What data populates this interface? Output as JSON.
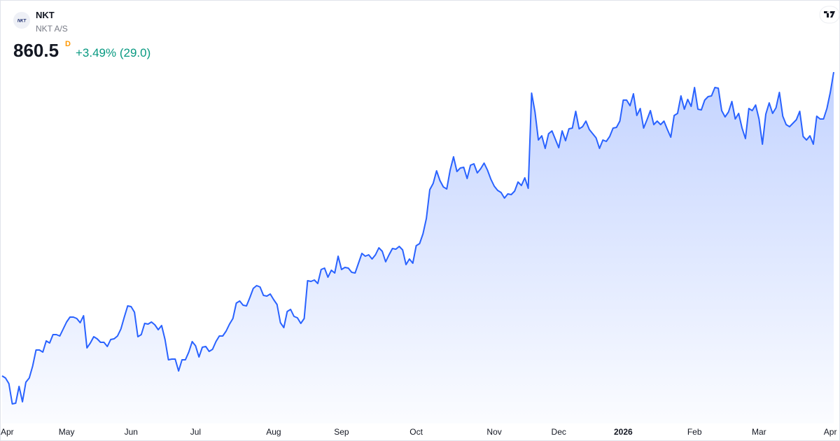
{
  "header": {
    "symbol": "NKT",
    "name": "NKT A/S",
    "price": "860.5",
    "interval": "D",
    "change": "+3.49% (29.0)"
  },
  "chart_data": {
    "type": "area",
    "color": "#2962ff",
    "values": [
      426.5,
      423.5,
      415.5,
      386.5,
      387.5,
      411.5,
      389.5,
      417.5,
      423.5,
      440.5,
      463.5,
      463.5,
      460.5,
      476.5,
      473.5,
      485.5,
      485.5,
      483.5,
      493.5,
      503.5,
      510.5,
      510.5,
      508.5,
      502.5,
      512.5,
      466.5,
      473.5,
      482.5,
      479.5,
      474.5,
      474.5,
      468.5,
      478.5,
      479.5,
      483.5,
      493.5,
      510.5,
      526.5,
      525.5,
      517.5,
      482.5,
      485.5,
      501.5,
      500.5,
      503.5,
      499.5,
      492.5,
      498.5,
      478.5,
      449.5,
      450.5,
      450.5,
      433.5,
      449.5,
      449.5,
      460.5,
      475.5,
      469.5,
      453.5,
      467.5,
      468.5,
      461.5,
      464.5,
      475.5,
      483.5,
      483.5,
      490.5,
      500.5,
      508.5,
      530.5,
      533.5,
      527.5,
      526.5,
      538.5,
      551.5,
      555.5,
      553.5,
      541.5,
      540.5,
      543.5,
      535.5,
      528.5,
      502.5,
      495.5,
      518.5,
      521.5,
      511.5,
      509.5,
      501.5,
      508.5,
      562.5,
      561.5,
      563.5,
      558.5,
      578.5,
      580.5,
      567.5,
      577.5,
      573.5,
      597.5,
      578.5,
      581.5,
      580.5,
      574.5,
      573.5,
      587.5,
      601.5,
      597.5,
      599.5,
      593.5,
      599.5,
      609.5,
      604.5,
      589.5,
      599.5,
      608.5,
      607.5,
      611.5,
      606.5,
      585.5,
      593.5,
      587.5,
      612.5,
      615.5,
      629.5,
      651.5,
      692.5,
      701.5,
      719.5,
      705.5,
      696.5,
      693.5,
      720.5,
      739.5,
      718.5,
      723.5,
      724.5,
      708.5,
      727.5,
      729.5,
      716.5,
      722.5,
      730.5,
      720.5,
      707.5,
      697.5,
      691.5,
      688.5,
      680.5,
      686.5,
      685.5,
      690.5,
      703.5,
      698.5,
      709.5,
      694.5,
      830.5,
      803.5,
      763.5,
      769.5,
      751.5,
      772.5,
      776.5,
      764.5,
      752.5,
      776.5,
      762.5,
      779.5,
      780.5,
      804.5,
      779.5,
      782.5,
      790.5,
      778.5,
      772.5,
      766.5,
      751.5,
      763.5,
      761.5,
      768.5,
      780.5,
      781.5,
      790.5,
      820.5,
      820.5,
      812.5,
      829.5,
      798.5,
      808.5,
      780.5,
      792.5,
      805.5,
      785.5,
      790.5,
      785.5,
      790.5,
      778.5,
      767.5,
      798.5,
      801.5,
      826.5,
      807.5,
      821.5,
      811.5,
      838.5,
      807.5,
      806.5,
      820.5,
      825.5,
      826.5,
      838.5,
      837.5,
      805.5,
      796.5,
      803.5,
      818.5,
      793.5,
      801.5,
      780.5,
      765.5,
      808.5,
      805.5,
      813.5,
      793.5,
      757.5,
      800.5,
      816.5,
      801.5,
      809.5,
      831.5,
      797.5,
      785.5,
      782.5,
      787.5,
      792.5,
      804.5,
      768.5,
      763.5,
      769.5,
      757.5,
      797.5,
      793.5,
      793.5,
      808.5,
      831.5,
      860.5
    ],
    "xlim": [
      0,
      245
    ],
    "ylim": [
      333.5,
      963.5
    ],
    "xticks": [
      {
        "value": 0,
        "label": "Apr"
      },
      {
        "value": 19,
        "label": "May"
      },
      {
        "value": 38,
        "label": "Jun"
      },
      {
        "value": 57,
        "label": "Jul"
      },
      {
        "value": 80,
        "label": "Aug"
      },
      {
        "value": 100,
        "label": "Sep"
      },
      {
        "value": 122,
        "label": "Oct"
      },
      {
        "value": 145,
        "label": "Nov"
      },
      {
        "value": 164,
        "label": "Dec"
      },
      {
        "value": 183,
        "label": "2026",
        "bold": true
      },
      {
        "value": 204,
        "label": "Feb"
      },
      {
        "value": 223,
        "label": "Mar"
      },
      {
        "value": 244,
        "label": "Apr"
      }
    ]
  }
}
